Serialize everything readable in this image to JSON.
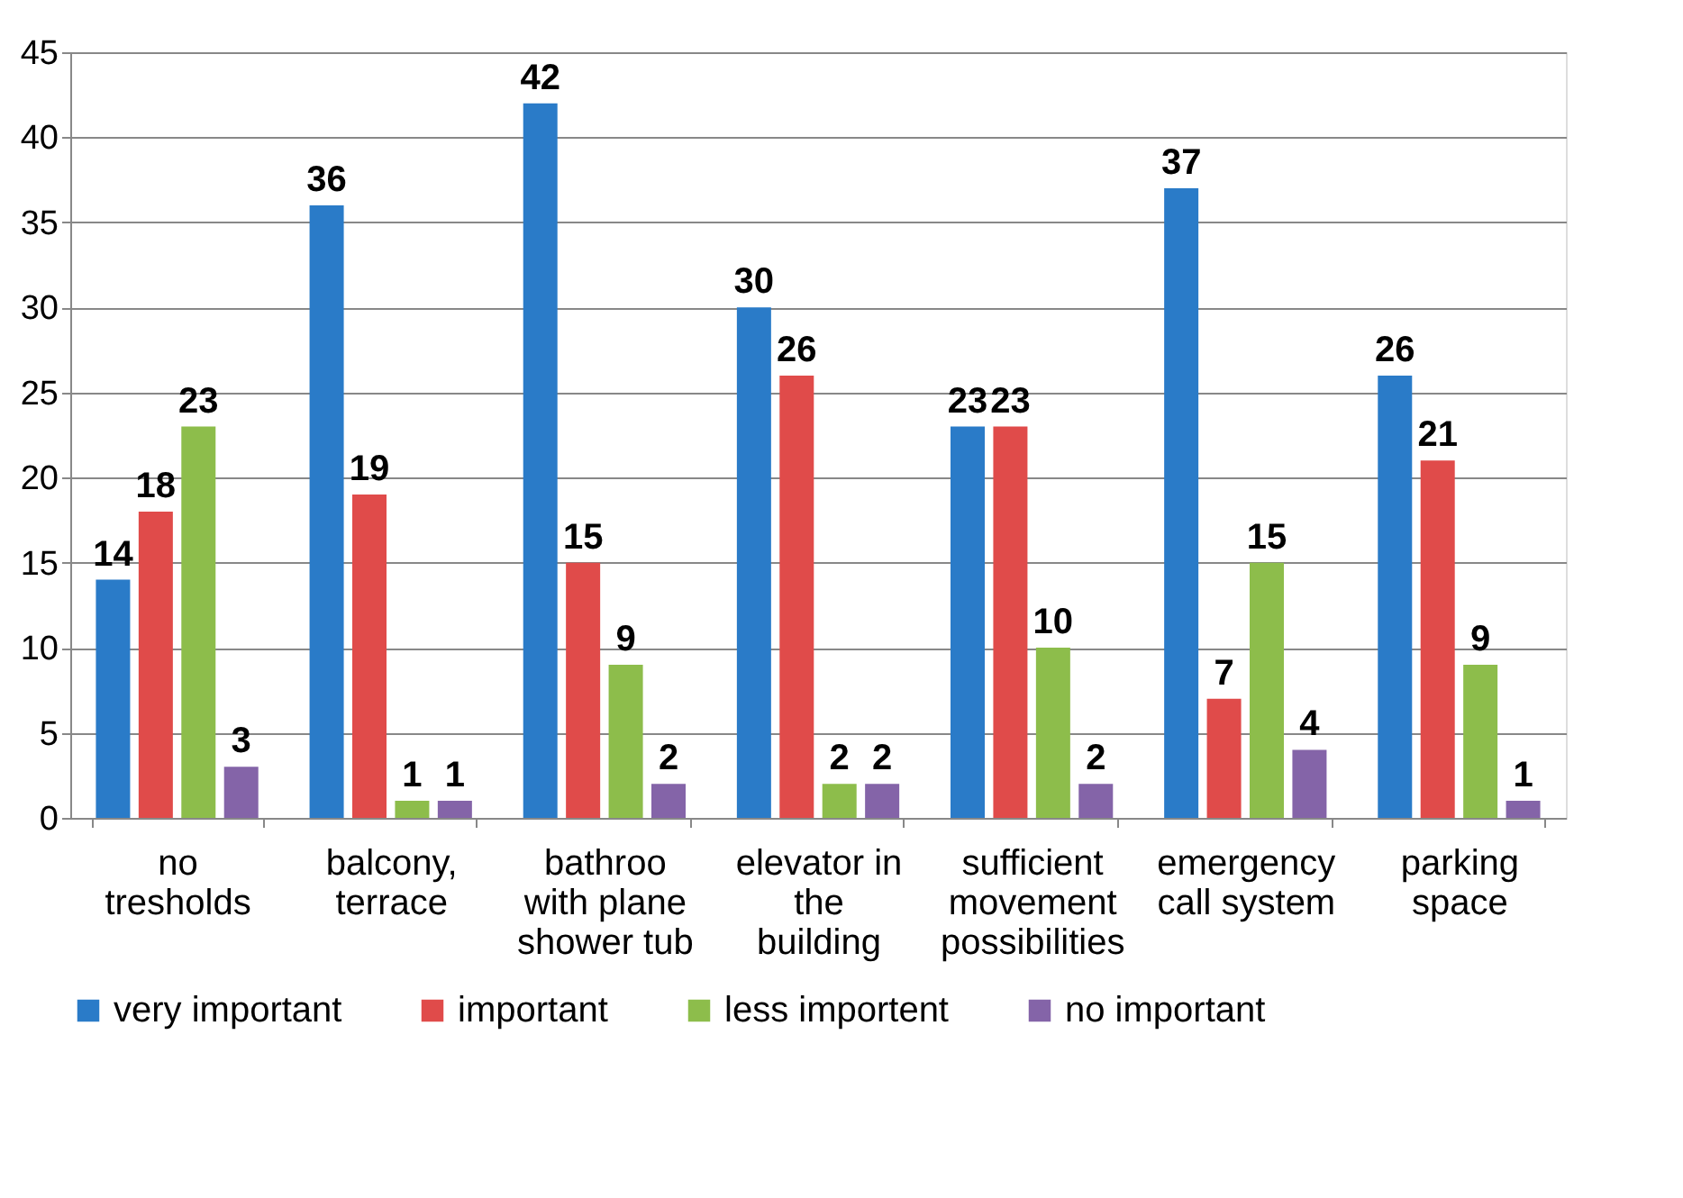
{
  "chart_data": {
    "type": "bar",
    "categories": [
      "no tresholds",
      "balcony, terrace",
      "bathroo with plane shower tub",
      "elevator in the building",
      "sufficient movement possibilities",
      "emergency call system",
      "parking space"
    ],
    "series": [
      {
        "name": "very important",
        "color": "#2a7bc8",
        "values": [
          14,
          36,
          42,
          30,
          23,
          37,
          26
        ]
      },
      {
        "name": "important",
        "color": "#e04b4a",
        "values": [
          18,
          19,
          15,
          26,
          23,
          7,
          21
        ]
      },
      {
        "name": "less importent",
        "color": "#8dbd4b",
        "values": [
          23,
          1,
          9,
          2,
          10,
          15,
          9
        ]
      },
      {
        "name": "no important",
        "color": "#8464a8",
        "values": [
          3,
          1,
          2,
          2,
          2,
          4,
          1
        ]
      }
    ],
    "ylim": [
      0,
      45
    ],
    "yticks": [
      0,
      5,
      10,
      15,
      20,
      25,
      30,
      35,
      40,
      45
    ],
    "grid": "y",
    "legend": "bottom",
    "data_labels": true
  }
}
